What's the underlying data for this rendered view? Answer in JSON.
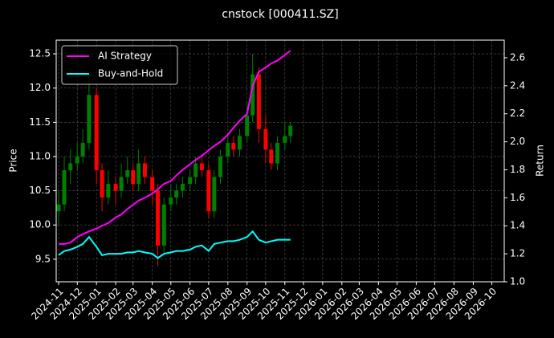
{
  "chart_data": {
    "type": "candlestick",
    "title": "cnstock [000411.SZ]",
    "ylabel": "Price",
    "y2label": "Return",
    "x": [
      "2024-11-01",
      "2024-11-10",
      "2024-11-20",
      "2024-12-01",
      "2024-12-10",
      "2024-12-20",
      "2025-01-01",
      "2025-01-10",
      "2025-01-20",
      "2025-02-01",
      "2025-02-10",
      "2025-02-20",
      "2025-03-01",
      "2025-03-10",
      "2025-03-20",
      "2025-04-01",
      "2025-04-10",
      "2025-04-20",
      "2025-05-01",
      "2025-05-10",
      "2025-05-20",
      "2025-06-01",
      "2025-06-10",
      "2025-06-20",
      "2025-07-01",
      "2025-07-10",
      "2025-07-20",
      "2025-08-01",
      "2025-08-10",
      "2025-08-20",
      "2025-09-01",
      "2025-09-10",
      "2025-09-20",
      "2025-10-01",
      "2025-10-10",
      "2025-10-20",
      "2025-11-01",
      "2025-11-10"
    ],
    "ohlc": {
      "open": [
        10.2,
        10.3,
        10.8,
        10.9,
        11.0,
        11.2,
        11.9,
        10.8,
        10.4,
        10.6,
        10.5,
        10.7,
        10.8,
        10.6,
        10.9,
        10.7,
        10.5,
        9.7,
        10.3,
        10.4,
        10.5,
        10.6,
        10.7,
        10.9,
        10.8,
        10.2,
        10.7,
        11.0,
        11.2,
        11.1,
        11.3,
        11.6,
        12.2,
        11.4,
        11.1,
        10.9,
        11.2,
        11.3
      ],
      "high": [
        10.5,
        11.0,
        11.1,
        11.2,
        11.4,
        12.2,
        12.0,
        10.9,
        10.8,
        10.7,
        10.9,
        11.0,
        10.9,
        11.1,
        11.0,
        10.8,
        10.6,
        10.4,
        10.6,
        10.6,
        10.7,
        10.8,
        11.0,
        11.0,
        10.9,
        10.8,
        11.1,
        11.3,
        11.3,
        11.4,
        11.8,
        12.5,
        12.3,
        11.6,
        11.2,
        11.3,
        11.5,
        11.5
      ],
      "low": [
        10.0,
        10.2,
        10.6,
        10.8,
        10.9,
        11.1,
        10.6,
        10.2,
        10.3,
        10.3,
        10.4,
        10.6,
        10.5,
        10.5,
        10.6,
        10.3,
        9.4,
        9.6,
        10.2,
        10.3,
        10.4,
        10.5,
        10.6,
        10.7,
        10.1,
        10.1,
        10.6,
        10.9,
        11.0,
        11.0,
        11.2,
        11.5,
        11.2,
        10.9,
        10.8,
        10.8,
        11.1,
        11.2
      ],
      "close": [
        10.3,
        10.8,
        10.9,
        11.0,
        11.2,
        11.9,
        10.8,
        10.4,
        10.6,
        10.5,
        10.7,
        10.8,
        10.6,
        10.9,
        10.7,
        10.5,
        9.7,
        10.3,
        10.4,
        10.5,
        10.6,
        10.7,
        10.9,
        10.8,
        10.2,
        10.7,
        11.0,
        11.2,
        11.1,
        11.3,
        11.6,
        12.2,
        11.4,
        11.1,
        10.9,
        11.2,
        11.3,
        11.45
      ],
      "up_color": "#008000",
      "down_color": "#ff0000"
    },
    "series": [
      {
        "name": "AI Strategy",
        "color": "#ff00ff",
        "axis": "y2",
        "values": [
          1.27,
          1.27,
          1.28,
          1.32,
          1.34,
          1.36,
          1.38,
          1.4,
          1.42,
          1.46,
          1.48,
          1.52,
          1.55,
          1.58,
          1.6,
          1.63,
          1.66,
          1.7,
          1.72,
          1.76,
          1.8,
          1.84,
          1.87,
          1.9,
          1.94,
          1.97,
          2.0,
          2.05,
          2.1,
          2.15,
          2.2,
          2.4,
          2.5,
          2.53,
          2.56,
          2.58,
          2.62,
          2.65
        ]
      },
      {
        "name": "Buy-and-Hold",
        "color": "#00ffff",
        "axis": "y2",
        "values": [
          1.19,
          1.22,
          1.23,
          1.25,
          1.27,
          1.32,
          1.25,
          1.19,
          1.2,
          1.2,
          1.2,
          1.21,
          1.21,
          1.22,
          1.21,
          1.2,
          1.17,
          1.2,
          1.21,
          1.22,
          1.22,
          1.23,
          1.25,
          1.26,
          1.22,
          1.27,
          1.28,
          1.29,
          1.29,
          1.3,
          1.32,
          1.36,
          1.3,
          1.28,
          1.29,
          1.3,
          1.3,
          1.3
        ]
      }
    ],
    "xlim": [
      "2024-10-28",
      "2026-10-21"
    ],
    "xticks": [
      "2024-11",
      "2024-12",
      "2025-01",
      "2025-02",
      "2025-03",
      "2025-04",
      "2025-05",
      "2025-06",
      "2025-07",
      "2025-08",
      "2025-09",
      "2025-10",
      "2025-11",
      "2025-12",
      "2026-01",
      "2026-02",
      "2026-03",
      "2026-04",
      "2026-05",
      "2026-06",
      "2026-07",
      "2026-08",
      "2026-09",
      "2026-10"
    ],
    "ylim": [
      9.17,
      12.7
    ],
    "yticks": [
      9.5,
      {
        "value": 10,
        "label": "10.0"
      },
      10.5,
      {
        "value": 11,
        "label": "11.0"
      },
      11.5,
      {
        "value": 12,
        "label": "12.0"
      },
      12.5
    ],
    "y2lim": [
      1.0,
      2.726
    ],
    "y2ticks": [
      {
        "value": 1,
        "label": "1.0"
      },
      1.2,
      1.4,
      1.6,
      1.8,
      {
        "value": 2,
        "label": "2.0"
      },
      2.2,
      2.4,
      2.6
    ],
    "grid": true,
    "legend": "upper left"
  }
}
